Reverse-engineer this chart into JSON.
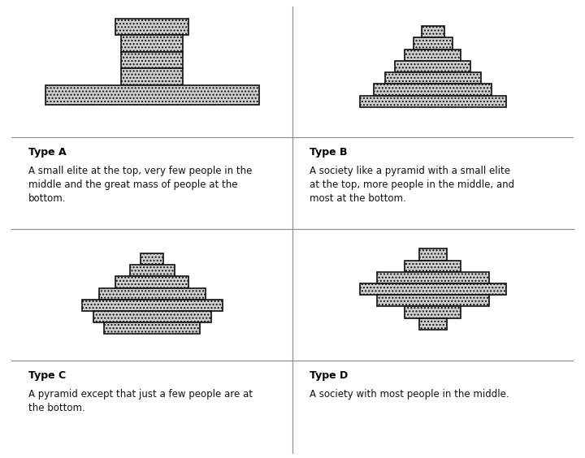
{
  "bg_color": "#ffffff",
  "fill_color": "#d0d0d0",
  "edge_color": "#111111",
  "hatch": "....",
  "line_color": "#888888",
  "label_fontsize": 9,
  "desc_fontsize": 8.5,
  "types": [
    {
      "label": "Type A",
      "description": "A small elite at the top, very few people in the\nmiddle and the great mass of people at the\nbottom.",
      "shape": "typeA"
    },
    {
      "label": "Type B",
      "description": "A society like a pyramid with a small elite\nat the top, more people in the middle, and\nmost at the bottom.",
      "shape": "typeB"
    },
    {
      "label": "Type C",
      "description": "A pyramid except that just a few people are at\nthe bottom.",
      "shape": "typeC"
    },
    {
      "label": "Type D",
      "description": "A society with most people in the middle.",
      "shape": "typeD"
    }
  ]
}
